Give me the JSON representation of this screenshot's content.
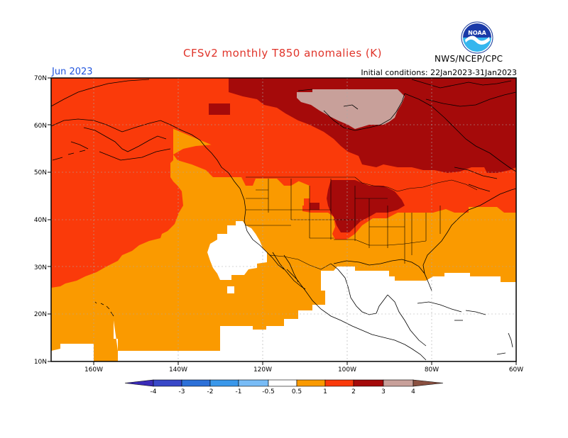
{
  "header": {
    "title": "CFSv2 monthly T850 anomalies (K)",
    "month": "Jun 2023",
    "initial_conditions": "Initial conditions: 22Jan2023-31Jan2023",
    "organization": "NWS/NCEP/CPC",
    "logo_text": "NOAA"
  },
  "axes": {
    "lat_labels": [
      "70N",
      "60N",
      "50N",
      "40N",
      "30N",
      "20N",
      "10N"
    ],
    "lon_labels": [
      "160W",
      "140W",
      "120W",
      "100W",
      "80W",
      "60W"
    ]
  },
  "colorbar": {
    "labels": [
      "-4",
      "-3",
      "-2",
      "-1",
      "-0.5",
      "0.5",
      "1",
      "2",
      "3",
      "4"
    ],
    "colors": [
      "#3a2bb8",
      "#2c60d0",
      "#3a8fe8",
      "#6cb2f4",
      "#ffffff",
      "#fa9a00",
      "#fa3a0a",
      "#a50a0a",
      "#c8a09a",
      "#8a5040"
    ]
  },
  "legend_colors": {
    "anomaly_0_5_to_1": "#fa9a00",
    "anomaly_1_to_2": "#fa3a0a",
    "anomaly_2_to_3": "#a50a0a",
    "anomaly_3_to_4": "#c8a09a",
    "neutral": "#ffffff"
  }
}
